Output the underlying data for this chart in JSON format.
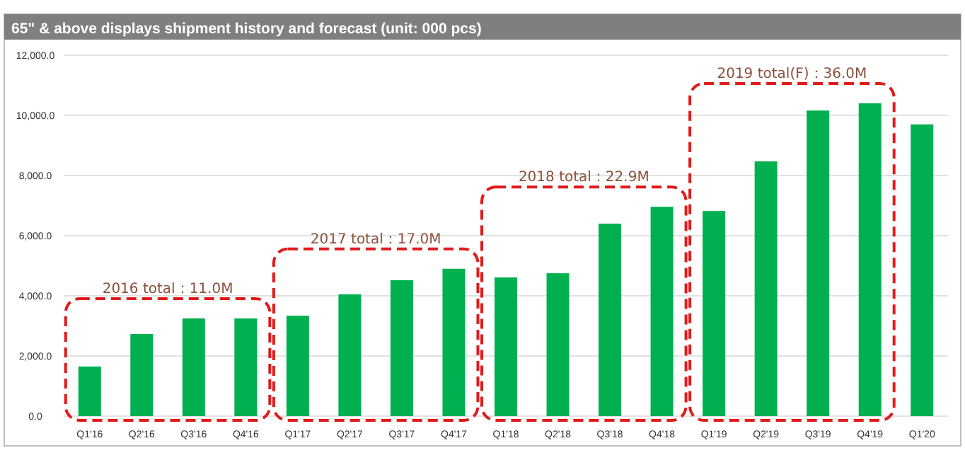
{
  "chart_data": {
    "type": "bar",
    "title": "65\" & above displays shipment history and forecast (unit: 000 pcs)",
    "categories": [
      "Q1'16",
      "Q2'16",
      "Q3'16",
      "Q4'16",
      "Q1'17",
      "Q2'17",
      "Q3'17",
      "Q4'17",
      "Q1'18",
      "Q2'18",
      "Q3'18",
      "Q4'18",
      "Q1'19",
      "Q2'19",
      "Q3'19",
      "Q4'19",
      "Q1'20"
    ],
    "values": [
      1650,
      2730,
      3250,
      3250,
      3340,
      4050,
      4520,
      4900,
      4610,
      4750,
      6400,
      6960,
      6820,
      8470,
      10160,
      10400,
      9700
    ],
    "color": "#00b050",
    "ylim": [
      0,
      12000
    ],
    "yticks": [
      {
        "value": 0,
        "label": "0.0"
      },
      {
        "value": 2000,
        "label": "2,000.0"
      },
      {
        "value": 4000,
        "label": "4,000.0"
      },
      {
        "value": 6000,
        "label": "6,000.0"
      },
      {
        "value": 8000,
        "label": "8,000.0"
      },
      {
        "value": 10000,
        "label": "10,000.0"
      },
      {
        "value": 12000,
        "label": "12,000.0"
      }
    ],
    "grid": "y",
    "annotations": [
      "2016 total：11.0M",
      "2017 total：17.0M",
      "2018 total：22.9M",
      "2019 total(F)：36.0M"
    ]
  }
}
